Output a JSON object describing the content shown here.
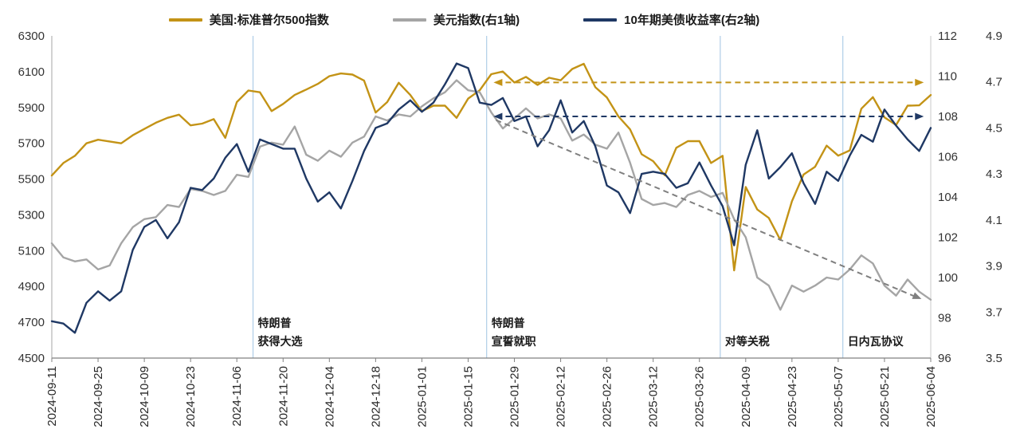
{
  "legend": {
    "items": [
      {
        "label": "美国:标准普尔500指数",
        "color": "#C39316"
      },
      {
        "label": "美元指数(右1轴)",
        "color": "#A5A5A5"
      },
      {
        "label": "10年期美债收益率(右2轴)",
        "color": "#1F3864"
      }
    ]
  },
  "chart_data": {
    "type": "line",
    "title": "",
    "legend_position": "top",
    "grid": false,
    "x_tick_labels": [
      "2024-09-11",
      "2024-09-25",
      "2024-10-09",
      "2024-10-23",
      "2024-11-06",
      "2024-11-20",
      "2024-12-04",
      "2024-12-18",
      "2025-01-01",
      "2025-01-15",
      "2025-01-29",
      "2025-02-12",
      "2025-02-26",
      "2025-03-12",
      "2025-03-26",
      "2025-04-09",
      "2025-04-23",
      "2025-05-07",
      "2025-05-21",
      "2025-06-04"
    ],
    "points_per_tick_interval": 4,
    "left_axis": {
      "min": 4500,
      "max": 6300,
      "step": 200,
      "ticks": [
        4500,
        4700,
        4900,
        5100,
        5300,
        5500,
        5700,
        5900,
        6100,
        6300
      ]
    },
    "right_axis_1": {
      "name": "右1轴",
      "min": 96,
      "max": 112,
      "step": 2,
      "ticks": [
        96,
        98,
        100,
        102,
        104,
        106,
        108,
        110,
        112
      ]
    },
    "right_axis_2": {
      "name": "右2轴",
      "min": 3.5,
      "max": 4.9,
      "step": 0.2,
      "ticks": [
        "3.5",
        "3.7",
        "3.9",
        "4.1",
        "4.3",
        "4.5",
        "4.7",
        "4.9"
      ]
    },
    "series": [
      {
        "name": "美国:标准普尔500指数",
        "axis": "left",
        "color": "#C39316",
        "values": [
          5520,
          5590,
          5630,
          5700,
          5720,
          5710,
          5700,
          5745,
          5780,
          5815,
          5842,
          5860,
          5800,
          5810,
          5835,
          5730,
          5930,
          5995,
          5985,
          5880,
          5920,
          5970,
          6000,
          6032,
          6075,
          6090,
          6084,
          6050,
          5872,
          5930,
          6038,
          5970,
          5880,
          5910,
          5910,
          5842,
          5950,
          5996,
          6086,
          6101,
          6040,
          6071,
          6026,
          6066,
          6052,
          6115,
          6144,
          6013,
          5956,
          5850,
          5778,
          5639,
          5600,
          5521,
          5675,
          5712,
          5712,
          5590,
          5630,
          4990,
          5456,
          5330,
          5283,
          5160,
          5376,
          5525,
          5569,
          5687,
          5631,
          5660,
          5893,
          5958,
          5845,
          5802,
          5910,
          5912,
          5970
        ]
      },
      {
        "name": "美元指数(右1轴)",
        "axis": "right1",
        "color": "#A5A5A5",
        "values": [
          101.7,
          101.0,
          100.8,
          100.9,
          100.4,
          100.6,
          101.7,
          102.5,
          102.9,
          103.0,
          103.6,
          103.5,
          104.4,
          104.3,
          104.1,
          104.3,
          105.1,
          105.0,
          106.5,
          106.7,
          106.6,
          107.5,
          106.1,
          105.8,
          106.3,
          106.0,
          106.7,
          107.0,
          108.0,
          107.8,
          108.1,
          108.0,
          108.5,
          108.9,
          109.2,
          109.8,
          109.3,
          109.2,
          108.2,
          107.4,
          107.9,
          108.4,
          107.9,
          108.1,
          107.9,
          106.8,
          107.1,
          106.6,
          106.4,
          107.2,
          105.7,
          103.9,
          103.6,
          103.7,
          103.5,
          104.1,
          104.3,
          104.0,
          104.2,
          102.9,
          102.0,
          100.0,
          99.6,
          98.4,
          99.6,
          99.3,
          99.6,
          100.0,
          99.9,
          100.4,
          101.1,
          100.7,
          99.6,
          99.1,
          99.9,
          99.3,
          98.9
        ]
      },
      {
        "name": "10年期美债收益率(右2轴)",
        "axis": "right2",
        "color": "#1F3864",
        "values": [
          3.66,
          3.65,
          3.61,
          3.74,
          3.79,
          3.75,
          3.79,
          3.97,
          4.07,
          4.1,
          4.02,
          4.09,
          4.24,
          4.23,
          4.28,
          4.37,
          4.43,
          4.31,
          4.45,
          4.43,
          4.41,
          4.41,
          4.28,
          4.18,
          4.22,
          4.15,
          4.27,
          4.4,
          4.5,
          4.52,
          4.58,
          4.62,
          4.57,
          4.61,
          4.69,
          4.78,
          4.76,
          4.61,
          4.6,
          4.63,
          4.53,
          4.55,
          4.42,
          4.49,
          4.62,
          4.48,
          4.53,
          4.42,
          4.25,
          4.22,
          4.13,
          4.3,
          4.31,
          4.3,
          4.24,
          4.26,
          4.35,
          4.25,
          4.16,
          3.99,
          4.34,
          4.49,
          4.28,
          4.33,
          4.39,
          4.26,
          4.17,
          4.31,
          4.27,
          4.38,
          4.47,
          4.44,
          4.58,
          4.51,
          4.45,
          4.4,
          4.5
        ]
      }
    ],
    "event_lines": [
      {
        "t": 4.35,
        "color": "#AFCDE7",
        "lines": [
          "特朗普",
          "获得大选"
        ]
      },
      {
        "t": 9.4,
        "color": "#AFCDE7",
        "lines": [
          "特朗普",
          "宣誓就职"
        ]
      },
      {
        "t": 14.45,
        "color": "#AFCDE7",
        "lines": [
          "对等关税"
        ]
      },
      {
        "t": 17.1,
        "color": "#AFCDE7",
        "lines": [
          "日内瓦协议"
        ]
      }
    ],
    "arrows": [
      {
        "style": "dashed",
        "heads": "both",
        "color": "#C39316",
        "axis": "left",
        "y_value": 6040,
        "from_t": 9.55,
        "to_t": 18.85
      },
      {
        "style": "dashed",
        "heads": "both",
        "color": "#1F3864",
        "axis": "left",
        "y_value": 5850,
        "from_t": 9.55,
        "to_t": 18.85
      },
      {
        "style": "dashed",
        "heads": "end",
        "color": "#7F7F7F",
        "axis": "left",
        "from": {
          "t": 9.6,
          "value": 5830
        },
        "to": {
          "t": 18.8,
          "value": 4830
        }
      }
    ]
  }
}
